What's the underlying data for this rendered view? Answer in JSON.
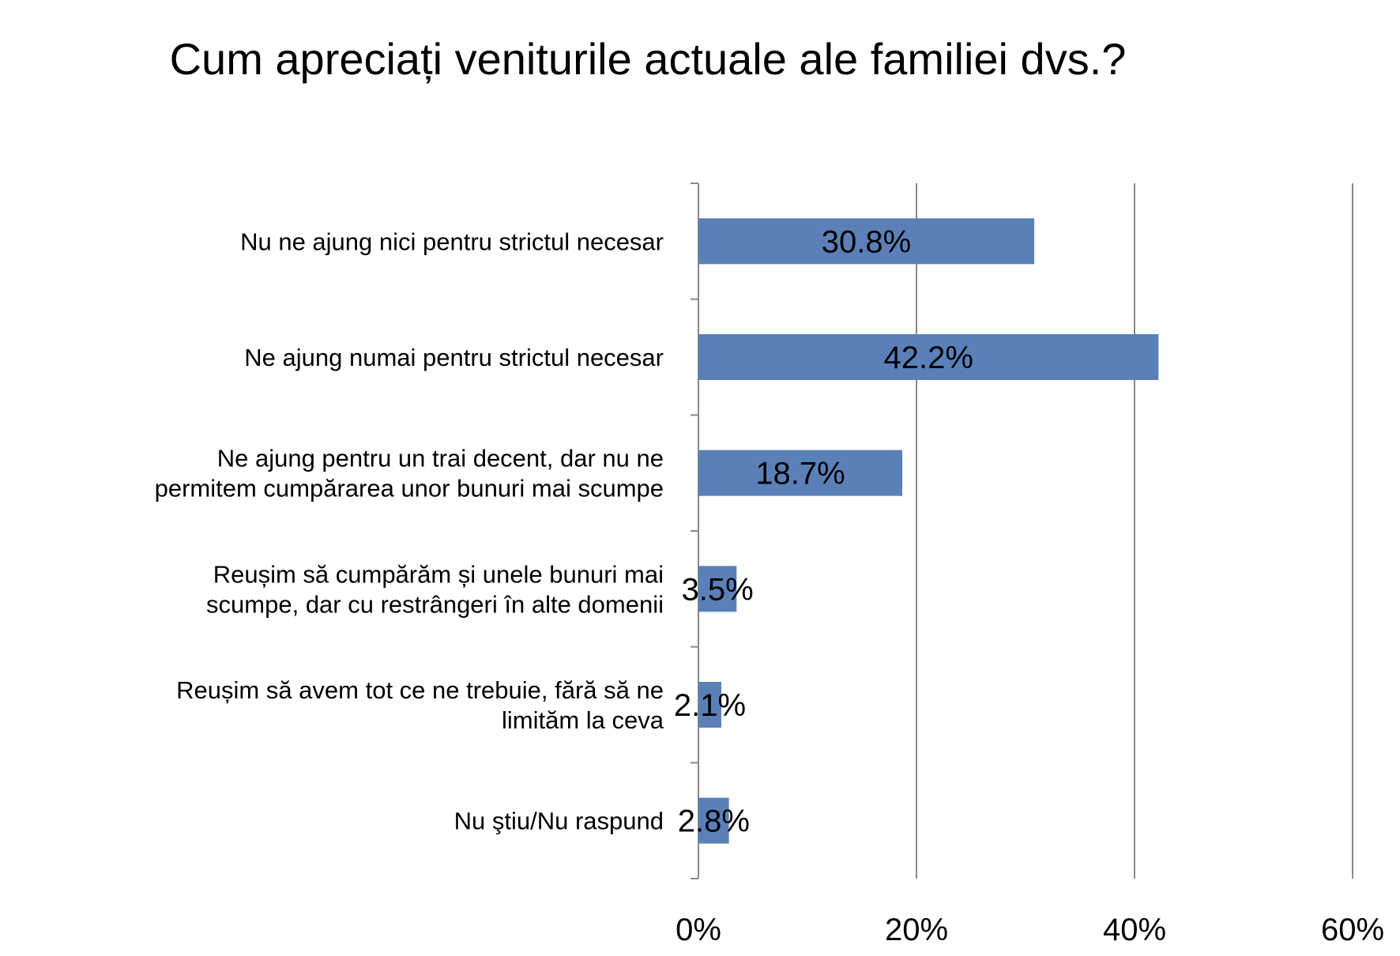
{
  "chart_data": {
    "type": "bar",
    "orientation": "horizontal",
    "title": "Cum apreciați veniturile actuale ale familiei dvs.?",
    "categories": [
      [
        "Nu ne ajung nici pentru strictul necesar"
      ],
      [
        "Ne ajung numai pentru strictul necesar"
      ],
      [
        "Ne ajung pentru un trai decent, dar nu ne",
        "permitem cumpărarea unor bunuri mai scumpe"
      ],
      [
        "Reușim să cumpărăm și unele bunuri mai",
        "scumpe, dar cu restrângeri în alte domenii"
      ],
      [
        "Reușim să avem tot ce ne trebuie, fără să ne",
        "limităm la ceva"
      ],
      [
        "Nu ştiu/Nu raspund"
      ]
    ],
    "values": [
      30.8,
      42.2,
      18.7,
      3.5,
      2.1,
      2.8
    ],
    "value_labels": [
      "30.8%",
      "42.2%",
      "18.7%",
      "3.5%",
      "2.1%",
      "2.8%"
    ],
    "xlim": [
      0,
      60
    ],
    "x_ticks": [
      0,
      20,
      40,
      60
    ],
    "x_tick_labels": [
      "0%",
      "20%",
      "40%",
      "60%"
    ],
    "grid": true,
    "legend": "none",
    "colors": {
      "bar": "#5b80b8",
      "grid": "#8a8a8a",
      "axis": "#8a8a8a"
    }
  }
}
